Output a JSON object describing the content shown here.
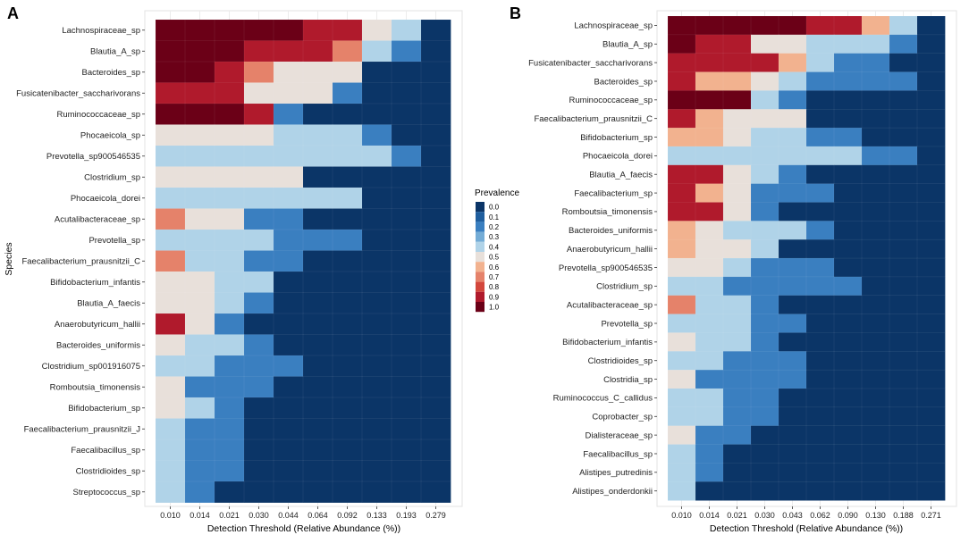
{
  "legend": {
    "title": "Prevalence",
    "levels": [
      "0.0",
      "0.1",
      "0.2",
      "0.3",
      "0.4",
      "0.5",
      "0.6",
      "0.7",
      "0.8",
      "0.9",
      "1.0"
    ],
    "colors": [
      "#0b3567",
      "#1f5e9e",
      "#3a7fc0",
      "#74acd6",
      "#b0d3e8",
      "#e8e0da",
      "#f2b28f",
      "#e5826a",
      "#d3473c",
      "#b01a2c",
      "#6b0017"
    ]
  },
  "chart_data": [
    {
      "type": "heatmap",
      "panel": "A",
      "title": "A",
      "xlabel": "Detection Threshold (Relative Abundance (%))",
      "ylabel": "Species",
      "x": [
        "0.010",
        "0.014",
        "0.021",
        "0.030",
        "0.044",
        "0.064",
        "0.092",
        "0.133",
        "0.193",
        "0.279"
      ],
      "y": [
        "Lachnospiraceae_sp",
        "Blautia_A_sp",
        "Bacteroides_sp",
        "Fusicatenibacter_saccharivorans",
        "Ruminococcaceae_sp",
        "Phocaeicola_sp",
        "Prevotella_sp900546535",
        "Clostridium_sp",
        "Phocaeicola_dorei",
        "Acutalibacteraceae_sp",
        "Prevotella_sp",
        "Faecalibacterium_prausnitzii_C",
        "Bifidobacterium_infantis",
        "Blautia_A_faecis",
        "Anaerobutyricum_hallii",
        "Bacteroides_uniformis",
        "Clostridium_sp001916075",
        "Romboutsia_timonensis",
        "Bifidobacterium_sp",
        "Faecalibacterium_prausnitzii_J",
        "Faecalibacillus_sp",
        "Clostridioides_sp",
        "Streptococcus_sp"
      ],
      "values": [
        [
          1.0,
          1.0,
          1.0,
          1.0,
          1.0,
          0.9,
          0.9,
          0.5,
          0.4,
          0.0
        ],
        [
          1.0,
          1.0,
          1.0,
          0.9,
          0.9,
          0.9,
          0.7,
          0.4,
          0.2,
          0.0
        ],
        [
          1.0,
          1.0,
          0.9,
          0.7,
          0.5,
          0.5,
          0.5,
          0.0,
          0.0,
          0.0
        ],
        [
          0.9,
          0.9,
          0.9,
          0.5,
          0.5,
          0.5,
          0.2,
          0.0,
          0.0,
          0.0
        ],
        [
          1.0,
          1.0,
          1.0,
          0.9,
          0.2,
          0.0,
          0.0,
          0.0,
          0.0,
          0.0
        ],
        [
          0.5,
          0.5,
          0.5,
          0.5,
          0.4,
          0.4,
          0.4,
          0.2,
          0.0,
          0.0
        ],
        [
          0.4,
          0.4,
          0.4,
          0.4,
          0.4,
          0.4,
          0.4,
          0.4,
          0.2,
          0.0
        ],
        [
          0.5,
          0.5,
          0.5,
          0.5,
          0.5,
          0.0,
          0.0,
          0.0,
          0.0,
          0.0
        ],
        [
          0.4,
          0.4,
          0.4,
          0.4,
          0.4,
          0.4,
          0.4,
          0.0,
          0.0,
          0.0
        ],
        [
          0.7,
          0.5,
          0.5,
          0.2,
          0.2,
          0.0,
          0.0,
          0.0,
          0.0,
          0.0
        ],
        [
          0.4,
          0.4,
          0.4,
          0.4,
          0.2,
          0.2,
          0.2,
          0.0,
          0.0,
          0.0
        ],
        [
          0.7,
          0.4,
          0.4,
          0.2,
          0.2,
          0.0,
          0.0,
          0.0,
          0.0,
          0.0
        ],
        [
          0.5,
          0.5,
          0.4,
          0.4,
          0.0,
          0.0,
          0.0,
          0.0,
          0.0,
          0.0
        ],
        [
          0.5,
          0.5,
          0.4,
          0.2,
          0.0,
          0.0,
          0.0,
          0.0,
          0.0,
          0.0
        ],
        [
          0.9,
          0.5,
          0.2,
          0.0,
          0.0,
          0.0,
          0.0,
          0.0,
          0.0,
          0.0
        ],
        [
          0.5,
          0.4,
          0.4,
          0.2,
          0.0,
          0.0,
          0.0,
          0.0,
          0.0,
          0.0
        ],
        [
          0.4,
          0.4,
          0.2,
          0.2,
          0.2,
          0.0,
          0.0,
          0.0,
          0.0,
          0.0
        ],
        [
          0.5,
          0.2,
          0.2,
          0.2,
          0.0,
          0.0,
          0.0,
          0.0,
          0.0,
          0.0
        ],
        [
          0.5,
          0.4,
          0.2,
          0.0,
          0.0,
          0.0,
          0.0,
          0.0,
          0.0,
          0.0
        ],
        [
          0.4,
          0.2,
          0.2,
          0.0,
          0.0,
          0.0,
          0.0,
          0.0,
          0.0,
          0.0
        ],
        [
          0.4,
          0.2,
          0.2,
          0.0,
          0.0,
          0.0,
          0.0,
          0.0,
          0.0,
          0.0
        ],
        [
          0.4,
          0.2,
          0.2,
          0.0,
          0.0,
          0.0,
          0.0,
          0.0,
          0.0,
          0.0
        ],
        [
          0.4,
          0.2,
          0.0,
          0.0,
          0.0,
          0.0,
          0.0,
          0.0,
          0.0,
          0.0
        ]
      ]
    },
    {
      "type": "heatmap",
      "panel": "B",
      "title": "B",
      "xlabel": "Detection Threshold (Relative Abundance (%))",
      "ylabel": "",
      "x": [
        "0.010",
        "0.014",
        "0.021",
        "0.030",
        "0.043",
        "0.062",
        "0.090",
        "0.130",
        "0.188",
        "0.271"
      ],
      "y": [
        "Lachnospiraceae_sp",
        "Blautia_A_sp",
        "Fusicatenibacter_saccharivorans",
        "Bacteroides_sp",
        "Ruminococcaceae_sp",
        "Faecalibacterium_prausnitzii_C",
        "Bifidobacterium_sp",
        "Phocaeicola_dorei",
        "Blautia_A_faecis",
        "Faecalibacterium_sp",
        "Romboutsia_timonensis",
        "Bacteroides_uniformis",
        "Anaerobutyricum_hallii",
        "Prevotella_sp900546535",
        "Clostridium_sp",
        "Acutalibacteraceae_sp",
        "Prevotella_sp",
        "Bifidobacterium_infantis",
        "Clostridioides_sp",
        "Clostridia_sp",
        "Ruminococcus_C_callidus",
        "Coprobacter_sp",
        "Dialisteraceae_sp",
        "Faecalibacillus_sp",
        "Alistipes_putredinis",
        "Alistipes_onderdonkii"
      ],
      "values": [
        [
          1.0,
          1.0,
          1.0,
          1.0,
          1.0,
          0.9,
          0.9,
          0.6,
          0.4,
          0.0
        ],
        [
          1.0,
          0.9,
          0.9,
          0.5,
          0.5,
          0.4,
          0.4,
          0.4,
          0.2,
          0.0
        ],
        [
          0.9,
          0.9,
          0.9,
          0.9,
          0.6,
          0.4,
          0.2,
          0.2,
          0.0,
          0.0
        ],
        [
          0.9,
          0.6,
          0.6,
          0.5,
          0.4,
          0.2,
          0.2,
          0.2,
          0.2,
          0.0
        ],
        [
          1.0,
          1.0,
          1.0,
          0.4,
          0.2,
          0.0,
          0.0,
          0.0,
          0.0,
          0.0
        ],
        [
          0.9,
          0.6,
          0.5,
          0.5,
          0.5,
          0.0,
          0.0,
          0.0,
          0.0,
          0.0
        ],
        [
          0.6,
          0.6,
          0.5,
          0.4,
          0.4,
          0.2,
          0.2,
          0.0,
          0.0,
          0.0
        ],
        [
          0.4,
          0.4,
          0.4,
          0.4,
          0.4,
          0.4,
          0.4,
          0.2,
          0.2,
          0.0
        ],
        [
          0.9,
          0.9,
          0.5,
          0.4,
          0.2,
          0.0,
          0.0,
          0.0,
          0.0,
          0.0
        ],
        [
          0.9,
          0.6,
          0.5,
          0.2,
          0.2,
          0.2,
          0.0,
          0.0,
          0.0,
          0.0
        ],
        [
          0.9,
          0.9,
          0.5,
          0.2,
          0.0,
          0.0,
          0.0,
          0.0,
          0.0,
          0.0
        ],
        [
          0.6,
          0.5,
          0.4,
          0.4,
          0.4,
          0.2,
          0.0,
          0.0,
          0.0,
          0.0
        ],
        [
          0.6,
          0.5,
          0.5,
          0.4,
          0.0,
          0.0,
          0.0,
          0.0,
          0.0,
          0.0
        ],
        [
          0.5,
          0.5,
          0.4,
          0.2,
          0.2,
          0.2,
          0.0,
          0.0,
          0.0,
          0.0
        ],
        [
          0.4,
          0.4,
          0.2,
          0.2,
          0.2,
          0.2,
          0.2,
          0.0,
          0.0,
          0.0
        ],
        [
          0.7,
          0.4,
          0.4,
          0.2,
          0.0,
          0.0,
          0.0,
          0.0,
          0.0,
          0.0
        ],
        [
          0.4,
          0.4,
          0.4,
          0.2,
          0.2,
          0.0,
          0.0,
          0.0,
          0.0,
          0.0
        ],
        [
          0.5,
          0.4,
          0.4,
          0.2,
          0.0,
          0.0,
          0.0,
          0.0,
          0.0,
          0.0
        ],
        [
          0.4,
          0.4,
          0.2,
          0.2,
          0.2,
          0.0,
          0.0,
          0.0,
          0.0,
          0.0
        ],
        [
          0.5,
          0.2,
          0.2,
          0.2,
          0.2,
          0.0,
          0.0,
          0.0,
          0.0,
          0.0
        ],
        [
          0.4,
          0.4,
          0.2,
          0.2,
          0.0,
          0.0,
          0.0,
          0.0,
          0.0,
          0.0
        ],
        [
          0.4,
          0.4,
          0.2,
          0.2,
          0.0,
          0.0,
          0.0,
          0.0,
          0.0,
          0.0
        ],
        [
          0.5,
          0.2,
          0.2,
          0.0,
          0.0,
          0.0,
          0.0,
          0.0,
          0.0,
          0.0
        ],
        [
          0.4,
          0.2,
          0.0,
          0.0,
          0.0,
          0.0,
          0.0,
          0.0,
          0.0,
          0.0
        ],
        [
          0.4,
          0.2,
          0.0,
          0.0,
          0.0,
          0.0,
          0.0,
          0.0,
          0.0,
          0.0
        ],
        [
          0.4,
          0.0,
          0.0,
          0.0,
          0.0,
          0.0,
          0.0,
          0.0,
          0.0,
          0.0
        ]
      ]
    }
  ]
}
